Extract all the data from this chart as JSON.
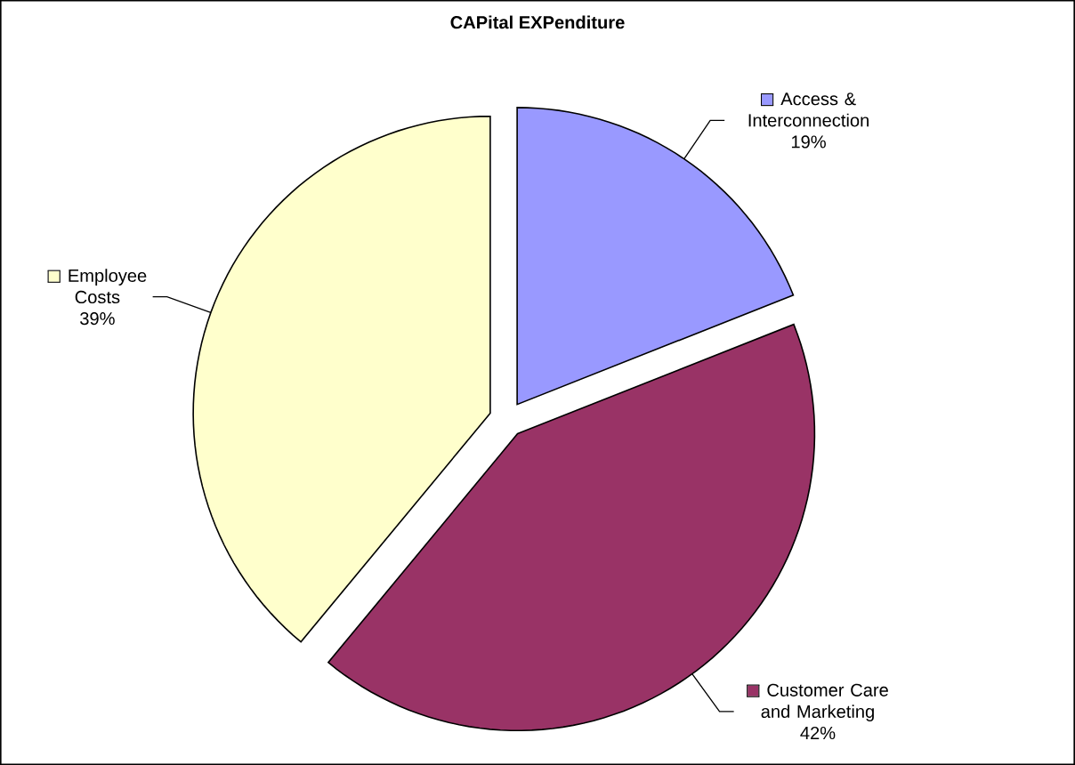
{
  "chart_data": {
    "type": "pie",
    "title": "CAPital EXPenditure",
    "categories": [
      "Access & Interconnection",
      "Customer Care and Marketing",
      "Employee Costs"
    ],
    "values": [
      19,
      42,
      39
    ],
    "value_labels": [
      "19%",
      "42%",
      "39%"
    ],
    "colors": [
      "#9999ff",
      "#993366",
      "#ffffcc"
    ],
    "legend": "top left"
  }
}
